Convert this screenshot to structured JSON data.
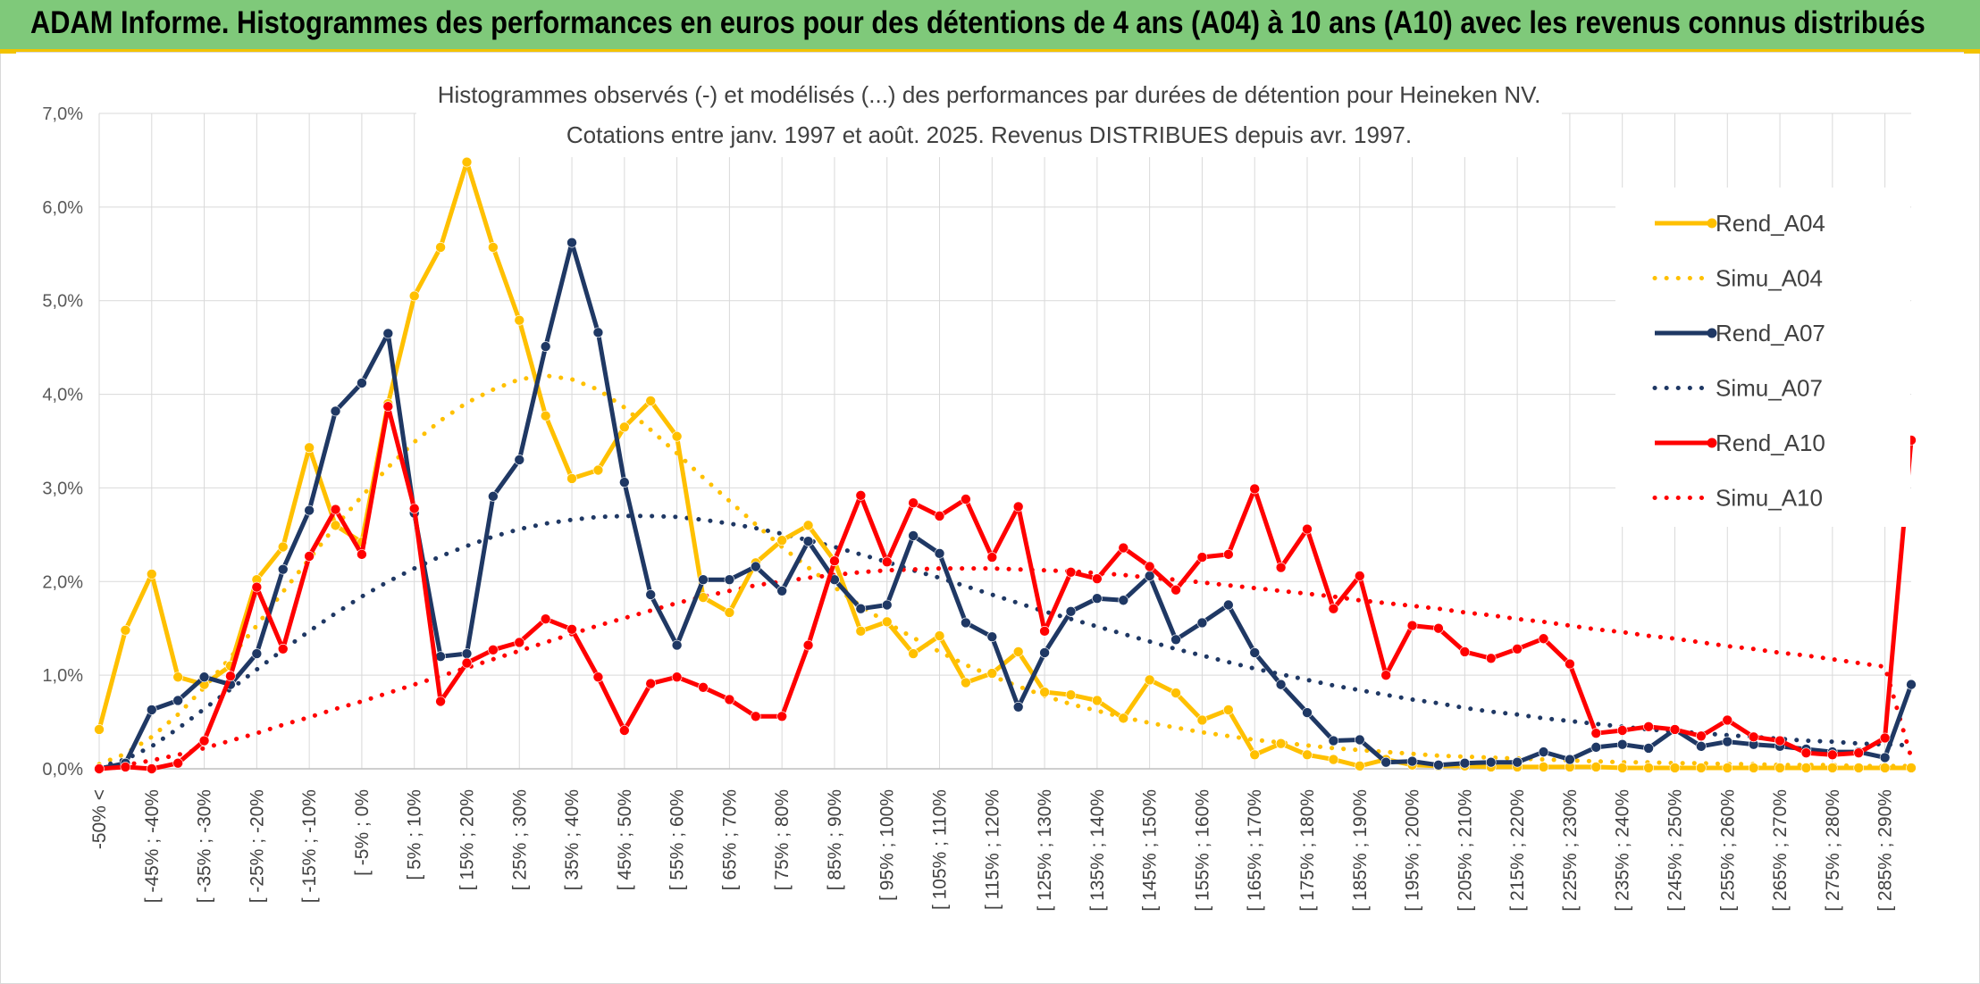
{
  "banner": {
    "title": "ADAM Informe. Histogrammes des performances en euros pour des détentions de 4 ans (A04) à 10 ans (A10) avec les revenus connus distribués"
  },
  "colors": {
    "banner_bg": "#7fc97a",
    "accent": "#f3c300",
    "A04": "#ffc000",
    "A07": "#1f3864",
    "A10": "#ff0000"
  },
  "chart_data": {
    "type": "line",
    "title": "Histogrammes observés (-) et modélisés (...) des performances par durées de détention pour Heineken NV.",
    "subtitle": "Cotations entre janv. 1997 et août. 2025. Revenus DISTRIBUES depuis avr. 1997.",
    "ylim": [
      0,
      7
    ],
    "yticks": [
      0,
      1,
      2,
      3,
      4,
      5,
      6,
      7
    ],
    "ytick_labels": [
      "0,0%",
      "1,0%",
      "2,0%",
      "3,0%",
      "4,0%",
      "5,0%",
      "6,0%",
      "7,0%"
    ],
    "grid": true,
    "legend_position": "right",
    "x_labels": [
      "-50% <",
      "[ -45% ; -40%",
      "[ -35% ; -30%",
      "[ -25% ; -20%",
      "[ -15% ; -10%",
      "[ -5% ; 0%",
      "[ 5% ; 10%",
      "[ 15% ; 20%",
      "[ 25% ; 30%",
      "[ 35% ; 40%",
      "[ 45% ; 50%",
      "[ 55% ; 60%",
      "[ 65% ; 70%",
      "[ 75% ; 80%",
      "[ 85% ; 90%",
      "[ 95% ; 100%",
      "[ 105% ; 110%",
      "[ 115% ; 120%",
      "[ 125% ; 130%",
      "[ 135% ; 140%",
      "[ 145% ; 150%",
      "[ 155% ; 160%",
      "[ 165% ; 170%",
      "[ 175% ; 180%",
      "[ 185% ; 190%",
      "[ 195% ; 200%",
      "[ 205% ; 210%",
      "[ 215% ; 220%",
      "[ 225% ; 230%",
      "[ 235% ; 240%",
      "[ 245% ; 250%",
      "[ 255% ; 260%",
      "[ 265% ; 270%",
      "[ 275% ; 280%",
      "[ 285% ; 290%"
    ],
    "n_points": 70,
    "series": [
      {
        "name": "Rend_A04",
        "style": "solid",
        "color": "#ffc000",
        "values": [
          0.42,
          1.48,
          2.08,
          0.98,
          0.9,
          1.1,
          2.02,
          2.37,
          3.43,
          2.6,
          2.42,
          3.9,
          5.05,
          5.57,
          6.48,
          5.57,
          4.79,
          3.77,
          3.1,
          3.19,
          3.65,
          3.93,
          3.55,
          1.83,
          1.67,
          2.2,
          2.44,
          2.6,
          2.22,
          1.47,
          1.57,
          1.23,
          1.42,
          0.92,
          1.02,
          1.25,
          0.82,
          0.79,
          0.73,
          0.54,
          0.95,
          0.81,
          0.52,
          0.63,
          0.15,
          0.27,
          0.15,
          0.1,
          0.03,
          0.1,
          0.04,
          0.03,
          0.03,
          0.02,
          0.02,
          0.02,
          0.02,
          0.02,
          0.01,
          0.01,
          0.01,
          0.01,
          0.01,
          0.01,
          0.01,
          0.01,
          0.01,
          0.01,
          0.01,
          0.01
        ]
      },
      {
        "name": "Simu_A04",
        "style": "dotted",
        "color": "#ffc000",
        "values": [
          0.05,
          0.16,
          0.34,
          0.58,
          0.87,
          1.19,
          1.53,
          1.89,
          2.24,
          2.59,
          2.91,
          3.22,
          3.49,
          3.72,
          3.91,
          4.05,
          4.16,
          4.2,
          4.16,
          4.05,
          3.86,
          3.62,
          3.37,
          3.11,
          2.86,
          2.61,
          2.37,
          2.15,
          1.94,
          1.74,
          1.56,
          1.4,
          1.25,
          1.11,
          0.99,
          0.88,
          0.78,
          0.69,
          0.62,
          0.55,
          0.49,
          0.44,
          0.39,
          0.35,
          0.31,
          0.28,
          0.25,
          0.22,
          0.2,
          0.18,
          0.16,
          0.14,
          0.13,
          0.12,
          0.11,
          0.1,
          0.09,
          0.08,
          0.07,
          0.07,
          0.06,
          0.06,
          0.05,
          0.05,
          0.04,
          0.04,
          0.04,
          0.03,
          0.03,
          0.03
        ]
      },
      {
        "name": "Rend_A07",
        "style": "solid",
        "color": "#1f3864",
        "values": [
          0.0,
          0.06,
          0.63,
          0.73,
          0.98,
          0.9,
          1.23,
          2.13,
          2.76,
          3.82,
          4.12,
          4.65,
          2.73,
          1.2,
          1.23,
          2.91,
          3.3,
          4.51,
          5.62,
          4.66,
          3.06,
          1.86,
          1.32,
          2.02,
          2.02,
          2.16,
          1.9,
          2.43,
          2.02,
          1.71,
          1.75,
          2.49,
          2.3,
          1.56,
          1.41,
          0.66,
          1.24,
          1.68,
          1.82,
          1.8,
          2.06,
          1.38,
          1.56,
          1.75,
          1.24,
          0.9,
          0.6,
          0.3,
          0.31,
          0.07,
          0.08,
          0.04,
          0.06,
          0.07,
          0.07,
          0.18,
          0.1,
          0.23,
          0.26,
          0.22,
          0.42,
          0.24,
          0.29,
          0.26,
          0.24,
          0.21,
          0.18,
          0.18,
          0.12,
          0.9
        ]
      },
      {
        "name": "Simu_A07",
        "style": "dotted",
        "color": "#1f3864",
        "values": [
          0.02,
          0.1,
          0.24,
          0.43,
          0.64,
          0.85,
          1.06,
          1.27,
          1.47,
          1.66,
          1.84,
          2.0,
          2.14,
          2.27,
          2.38,
          2.48,
          2.56,
          2.62,
          2.66,
          2.69,
          2.7,
          2.7,
          2.69,
          2.66,
          2.62,
          2.57,
          2.51,
          2.44,
          2.37,
          2.29,
          2.21,
          2.12,
          2.04,
          1.95,
          1.86,
          1.77,
          1.68,
          1.6,
          1.52,
          1.44,
          1.36,
          1.28,
          1.21,
          1.14,
          1.07,
          1.01,
          0.95,
          0.89,
          0.84,
          0.79,
          0.74,
          0.7,
          0.65,
          0.61,
          0.58,
          0.54,
          0.51,
          0.48,
          0.45,
          0.42,
          0.4,
          0.38,
          0.36,
          0.34,
          0.32,
          0.3,
          0.29,
          0.27,
          0.26,
          0.25
        ]
      },
      {
        "name": "Rend_A10",
        "style": "solid",
        "color": "#ff0000",
        "values": [
          0.0,
          0.02,
          0.0,
          0.06,
          0.3,
          0.99,
          1.94,
          1.28,
          2.27,
          2.77,
          2.29,
          3.87,
          2.78,
          0.72,
          1.13,
          1.27,
          1.35,
          1.6,
          1.49,
          0.98,
          0.41,
          0.91,
          0.98,
          0.87,
          0.74,
          0.56,
          0.56,
          1.32,
          2.22,
          2.92,
          2.21,
          2.84,
          2.7,
          2.88,
          2.26,
          2.8,
          1.47,
          2.1,
          2.03,
          2.36,
          2.16,
          1.91,
          2.26,
          2.29,
          2.99,
          2.15,
          2.56,
          1.71,
          2.06,
          1.0,
          1.53,
          1.5,
          1.25,
          1.18,
          1.28,
          1.39,
          1.12,
          0.38,
          0.41,
          0.45,
          0.42,
          0.35,
          0.52,
          0.34,
          0.3,
          0.17,
          0.15,
          0.17,
          0.33,
          3.51
        ]
      },
      {
        "name": "Simu_A10",
        "style": "dotted",
        "color": "#ff0000",
        "values": [
          0.01,
          0.04,
          0.09,
          0.15,
          0.22,
          0.3,
          0.38,
          0.47,
          0.55,
          0.64,
          0.72,
          0.81,
          0.9,
          0.99,
          1.08,
          1.17,
          1.26,
          1.35,
          1.44,
          1.53,
          1.61,
          1.69,
          1.77,
          1.84,
          1.9,
          1.96,
          2.0,
          2.04,
          2.07,
          2.1,
          2.12,
          2.13,
          2.14,
          2.14,
          2.14,
          2.13,
          2.12,
          2.11,
          2.09,
          2.07,
          2.04,
          2.02,
          1.99,
          1.96,
          1.93,
          1.9,
          1.87,
          1.84,
          1.8,
          1.77,
          1.74,
          1.71,
          1.67,
          1.64,
          1.6,
          1.57,
          1.53,
          1.49,
          1.46,
          1.42,
          1.39,
          1.35,
          1.31,
          1.28,
          1.24,
          1.21,
          1.17,
          1.13,
          1.09,
          0.12
        ]
      }
    ]
  }
}
